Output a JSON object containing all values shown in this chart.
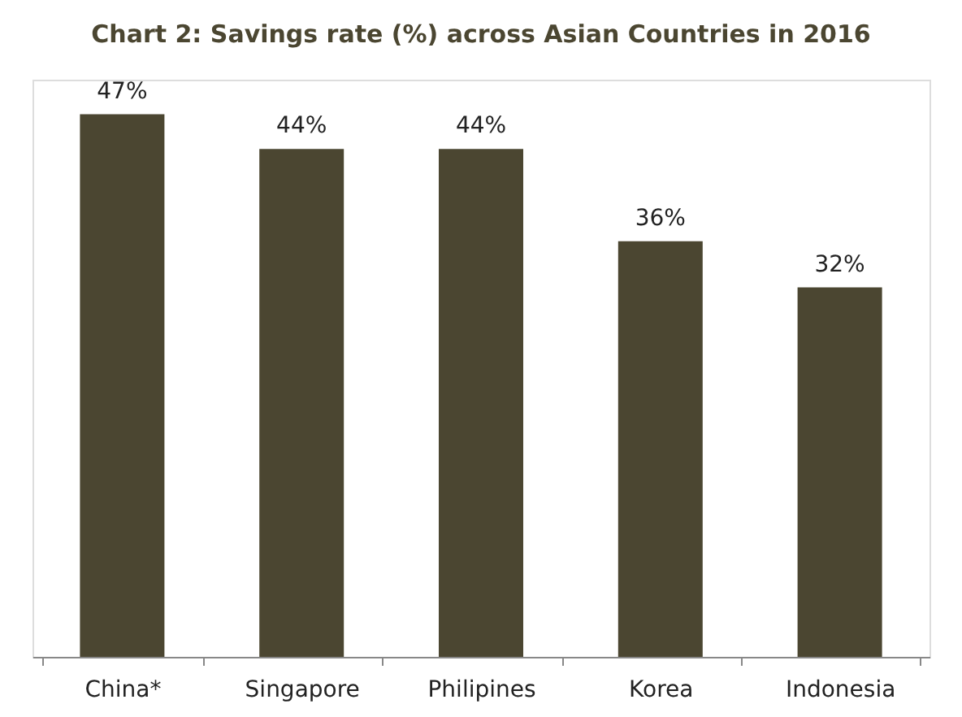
{
  "chart_data": {
    "type": "bar",
    "title": "Chart 2: Savings rate (%) across Asian Countries in 2016",
    "categories": [
      "China*",
      "Singapore",
      "Philipines",
      "Korea",
      "Indonesia"
    ],
    "values": [
      47,
      44,
      44,
      36,
      32
    ],
    "value_labels": [
      "47%",
      "44%",
      "44%",
      "36%",
      "32%"
    ],
    "color": "#4b4631",
    "tick_labels": "x"
  }
}
